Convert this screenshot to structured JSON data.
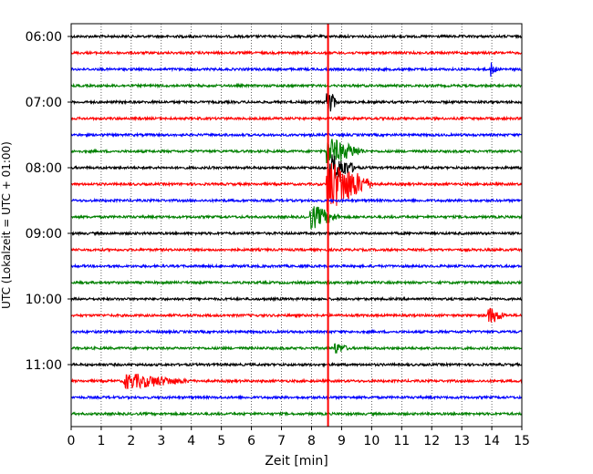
{
  "chart_data": {
    "type": "line",
    "title": "",
    "xlabel": "Zeit  [min]",
    "ylabel": "UTC (Lokalzeit = UTC + 01:00)",
    "xlim": [
      0,
      15
    ],
    "x_ticks": [
      "0",
      "1",
      "2",
      "3",
      "4",
      "5",
      "6",
      "7",
      "8",
      "9",
      "10",
      "11",
      "12",
      "13",
      "14",
      "15"
    ],
    "y_tick_labels": [
      "06:00",
      "07:00",
      "08:00",
      "09:00",
      "10:00",
      "11:00"
    ],
    "trace_start_times": [
      "06:00",
      "06:15",
      "06:30",
      "06:45",
      "07:00",
      "07:15",
      "07:30",
      "07:45",
      "08:00",
      "08:15",
      "08:30",
      "08:45",
      "09:00",
      "09:15",
      "09:30",
      "09:45",
      "10:00",
      "10:15",
      "10:30",
      "10:45",
      "11:00",
      "11:15",
      "11:30",
      "11:45"
    ],
    "trace_colors": [
      "#000000",
      "#ff0000",
      "#0000ff",
      "#008000"
    ],
    "event_marker": {
      "x": 8.55,
      "color": "#ff0000"
    },
    "events": [
      {
        "trace_index": 2,
        "x": 14.0,
        "amplitude": 0.4,
        "duration": 0.2
      },
      {
        "trace_index": 7,
        "x": 8.55,
        "amplitude": 0.8,
        "duration": 1.3
      },
      {
        "trace_index": 8,
        "x": 8.6,
        "amplitude": 0.9,
        "duration": 1.0
      },
      {
        "trace_index": 9,
        "x": 8.55,
        "amplitude": 1.6,
        "duration": 1.6
      },
      {
        "trace_index": 11,
        "x": 8.0,
        "amplitude": 0.7,
        "duration": 1.0
      },
      {
        "trace_index": 4,
        "x": 8.55,
        "amplitude": 1.0,
        "duration": 0.3
      },
      {
        "trace_index": 17,
        "x": 13.9,
        "amplitude": 0.5,
        "duration": 0.6
      },
      {
        "trace_index": 21,
        "x": 1.8,
        "amplitude": 0.45,
        "duration": 2.3
      },
      {
        "trace_index": 19,
        "x": 8.8,
        "amplitude": 0.3,
        "duration": 0.5
      }
    ],
    "grid": {
      "x": true,
      "style": "dotted"
    }
  }
}
